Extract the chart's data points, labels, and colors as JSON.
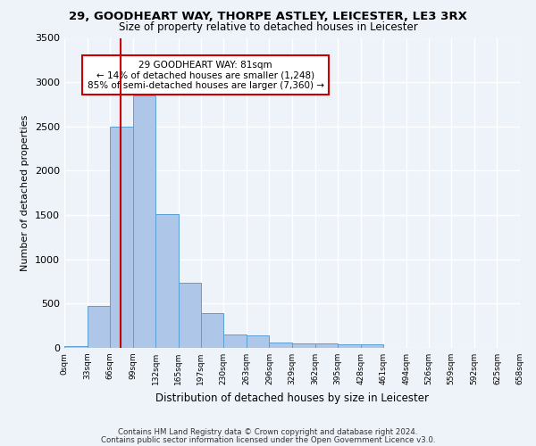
{
  "title1": "29, GOODHEART WAY, THORPE ASTLEY, LEICESTER, LE3 3RX",
  "title2": "Size of property relative to detached houses in Leicester",
  "xlabel": "Distribution of detached houses by size in Leicester",
  "ylabel": "Number of detached properties",
  "footnote1": "Contains HM Land Registry data © Crown copyright and database right 2024.",
  "footnote2": "Contains public sector information licensed under the Open Government Licence v3.0.",
  "annotation_line1": "29 GOODHEART WAY: 81sqm",
  "annotation_line2": "← 14% of detached houses are smaller (1,248)",
  "annotation_line3": "85% of semi-detached houses are larger (7,360) →",
  "bar_edges": [
    0,
    33,
    66,
    99,
    132,
    165,
    197,
    230,
    263,
    296,
    329,
    362,
    395,
    428,
    461,
    494,
    526,
    559,
    592,
    625,
    658
  ],
  "bar_heights": [
    25,
    475,
    2500,
    2850,
    1510,
    740,
    390,
    150,
    145,
    65,
    50,
    50,
    40,
    40,
    0,
    0,
    0,
    0,
    0,
    0
  ],
  "bar_color": "#aec6e8",
  "bar_edgecolor": "#5a9fd4",
  "vline_x": 81,
  "vline_color": "#cc0000",
  "ylim": [
    0,
    3500
  ],
  "yticks": [
    0,
    500,
    1000,
    1500,
    2000,
    2500,
    3000,
    3500
  ],
  "tick_labels": [
    "0sqm",
    "33sqm",
    "66sqm",
    "99sqm",
    "132sqm",
    "165sqm",
    "197sqm",
    "230sqm",
    "263sqm",
    "296sqm",
    "329sqm",
    "362sqm",
    "395sqm",
    "428sqm",
    "461sqm",
    "494sqm",
    "526sqm",
    "559sqm",
    "592sqm",
    "625sqm",
    "658sqm"
  ],
  "bg_color": "#eef2f9",
  "grid_color": "#ffffff",
  "title_fontsize": 9.5,
  "subtitle_fontsize": 8.5
}
